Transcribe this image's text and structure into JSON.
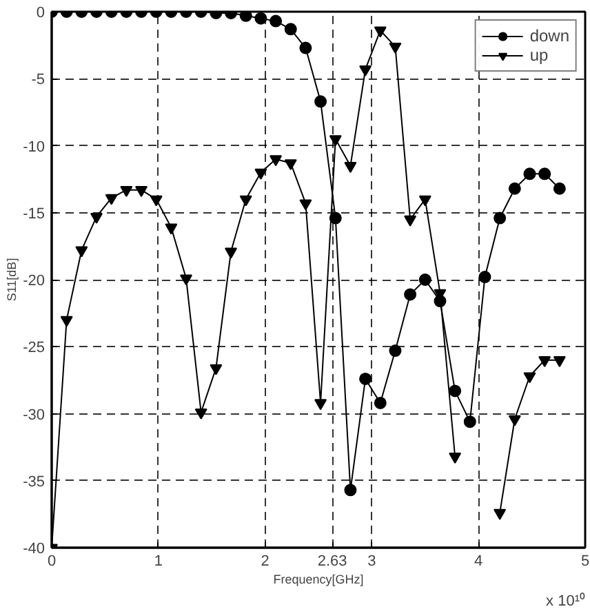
{
  "chart_data": {
    "type": "line",
    "xlabel": "Frequency[GHz]",
    "ylabel": "S11[dB]",
    "x": [
      0,
      0.14,
      0.28,
      0.42,
      0.56,
      0.7,
      0.84,
      0.98,
      1.12,
      1.26,
      1.4,
      1.54,
      1.68,
      1.82,
      1.96,
      2.1,
      2.24,
      2.38,
      2.52,
      2.66,
      2.8,
      2.94,
      3.08,
      3.22,
      3.36,
      3.5,
      3.64,
      3.78,
      3.92,
      4.06,
      4.2,
      4.34,
      4.48,
      4.62,
      4.76
    ],
    "series": [
      {
        "name": "down",
        "color": "#000000",
        "marker": "circle",
        "values": [
          0,
          0,
          0,
          0,
          0,
          0,
          0,
          0,
          0,
          0,
          0,
          -0.1,
          -0.1,
          -0.3,
          -0.5,
          -0.7,
          -1.3,
          -2.7,
          -6.7,
          -15.4,
          -35.7,
          -27.4,
          -29.2,
          -25.3,
          -21.1,
          -20.0,
          -21.6,
          -28.3,
          -30.6,
          -19.8,
          -15.4,
          -13.2,
          -12.1,
          -12.1,
          -13.2
        ]
      },
      {
        "name": "up",
        "color": "#000000",
        "marker": "triangle",
        "values": [
          -40,
          -23.0,
          -17.8,
          -15.3,
          -13.9,
          -13.3,
          -13.3,
          -14.0,
          -16.1,
          -19.9,
          -29.9,
          -26.6,
          -17.9,
          -14.0,
          -12.0,
          -11.0,
          -11.3,
          -14.3,
          -29.2,
          -9.5,
          -11.5,
          -4.3,
          -1.4,
          -2.6,
          -15.5,
          -14.0,
          -21.0,
          -33.2,
          null,
          null,
          -37.4,
          -30.4,
          -27.2,
          -26.0,
          -26.0
        ]
      }
    ],
    "xlim": [
      0,
      5
    ],
    "xticks": [
      0,
      1,
      2,
      2.63,
      3,
      4,
      5
    ],
    "ylim": [
      -40,
      0
    ],
    "yticks": [
      -40,
      -35,
      -30,
      -25,
      -20,
      -15,
      -10,
      -5,
      0
    ],
    "grid": true,
    "legend": "top right",
    "annotations": [
      "x 10¹⁰"
    ]
  }
}
